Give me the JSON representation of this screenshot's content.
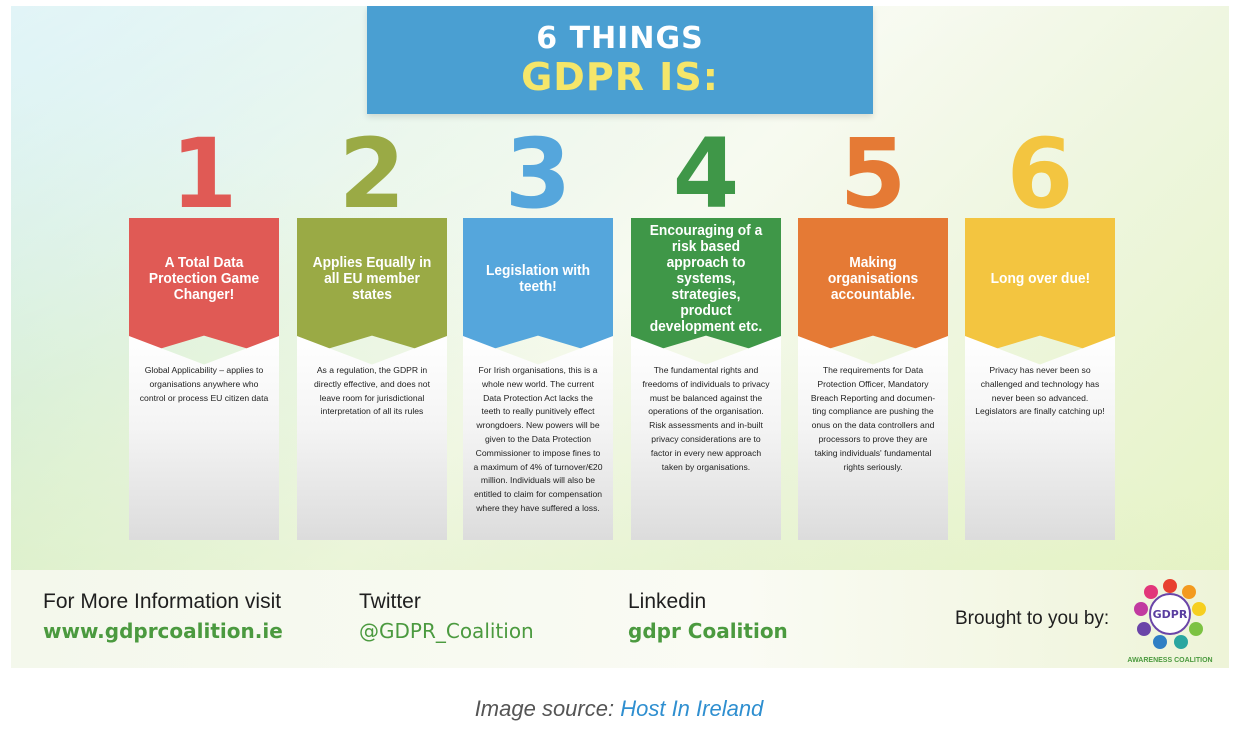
{
  "title": {
    "line1": "6 THINGS",
    "line2": "GDPR IS:"
  },
  "colors": {
    "banner": "#4a9fd2",
    "banner_highlight": "#f5e66a",
    "footer_accent": "#4b9a3f",
    "link": "#2f8fd0"
  },
  "cards": [
    {
      "number": "1",
      "color": "#e05a55",
      "heading": "A Total Data Protection Game Changer!",
      "body": "Global Applicability – applies to organisations anywhere who control or process EU citizen data"
    },
    {
      "number": "2",
      "color": "#9aaa45",
      "heading": "Applies Equally in all EU member states",
      "body": "As a regulation, the GDPR in directly effective, and does not leave room for jurisdictional interpretation of all its rules"
    },
    {
      "number": "3",
      "color": "#55a6dc",
      "heading": "Legislation with teeth!",
      "body": "For Irish organisations, this is a whole new world. The current Data Protection Act lacks the teeth to really punitively effect wrongdoers. New powers will be given to the Data Protection Commissioner to impose fines to a maximum of 4% of turnover/€20 million. Individuals will also be entitled to claim for compensation where they have suffered a loss."
    },
    {
      "number": "4",
      "color": "#3f9748",
      "heading": "Encouraging of a risk based approach to systems, strategies, product development etc.",
      "body": "The fundamental rights and freedoms of individuals to privacy must be balanced against the operations of the organisation. Risk assessments and in-built privacy considerations are to factor in every new approach taken by organisations."
    },
    {
      "number": "5",
      "color": "#e57a35",
      "heading": "Making organisations accountable.",
      "body": "The requirements for Data Protection Officer, Mandatory Breach Reporting and documen-ting compliance are pushing the onus on the data controllers and processors to prove they are taking individuals' fundamental rights seriously."
    },
    {
      "number": "6",
      "color": "#f3c540",
      "heading": "Long over due!",
      "body": "Privacy has never been so challenged and technology has never been so advanced. Legislators are finally catching up!"
    }
  ],
  "footer": {
    "info_label": "For More Information visit",
    "info_value": "www.gdprcoalition.ie",
    "twitter_label": "Twitter",
    "twitter_value": "@GDPR_Coalition",
    "linkedin_label": "Linkedin",
    "linkedin_value": "gdpr Coalition",
    "brought_by": "Brought to you by:",
    "logo_text": "GDPR",
    "logo_subtitle": "AWARENESS COALITION"
  },
  "caption": {
    "prefix": "Image source:",
    "link_text": "Host In Ireland"
  }
}
